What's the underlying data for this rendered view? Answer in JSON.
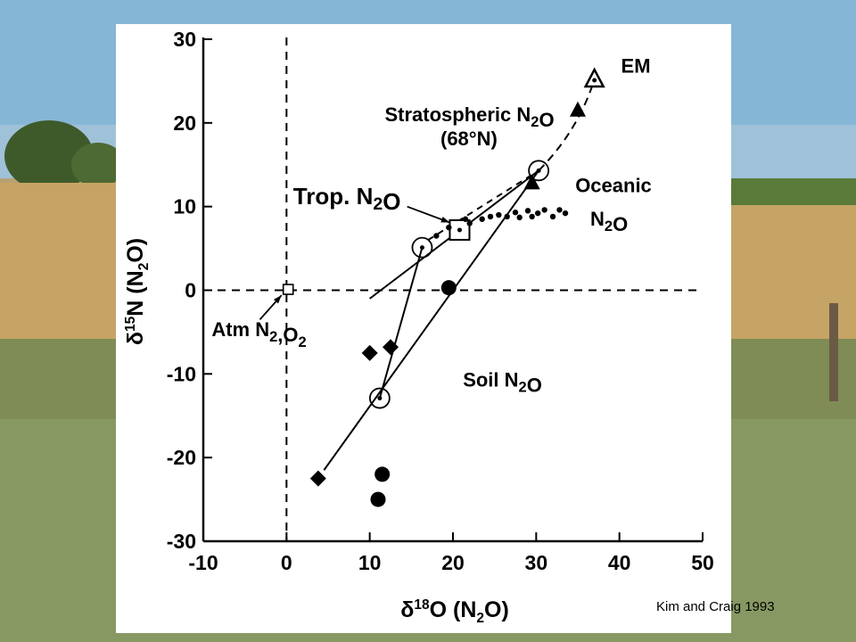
{
  "chart_data": {
    "type": "scatter",
    "title": "",
    "xlabel": "δ18O (N2O)",
    "ylabel": "δ15N (N2O)",
    "xlim": [
      -10,
      50
    ],
    "ylim": [
      -30,
      30
    ],
    "x_ticks": [
      "-10",
      "0",
      "10",
      "20",
      "30",
      "40",
      "50"
    ],
    "y_ticks": [
      "30",
      "20",
      "10",
      "0",
      "-10",
      "-20",
      "-30"
    ],
    "grid": false,
    "reference_lines": [
      {
        "axis": "x",
        "value": 0,
        "style": "dashed"
      },
      {
        "axis": "y",
        "value": 0,
        "style": "dashed"
      }
    ],
    "series": [
      {
        "marker": "filled-circle",
        "points": [
          [
            19.5,
            0.3
          ],
          [
            11.5,
            -22
          ],
          [
            11,
            -25
          ]
        ]
      },
      {
        "marker": "filled-diamond",
        "points": [
          [
            10,
            -7.5
          ],
          [
            12.5,
            -6.8
          ],
          [
            3.8,
            -22.5
          ]
        ]
      },
      {
        "marker": "filled-triangle",
        "points": [
          [
            35,
            21.5
          ],
          [
            29.5,
            12.8
          ]
        ]
      },
      {
        "marker": "open-triangle",
        "points": [
          [
            37,
            25.2
          ]
        ]
      },
      {
        "marker": "open-circle",
        "points": [
          [
            16.3,
            5.1
          ],
          [
            30.3,
            14.3
          ],
          [
            11.2,
            -12.9
          ]
        ]
      },
      {
        "marker": "open-square",
        "points": [
          [
            20.8,
            7.2
          ],
          [
            0.2,
            0.1
          ]
        ]
      },
      {
        "marker": "small-dot",
        "points": [
          [
            18,
            6.5
          ],
          [
            19.5,
            7.5
          ],
          [
            21.5,
            8.5
          ],
          [
            22,
            8
          ],
          [
            23.5,
            8.5
          ],
          [
            24.5,
            8.8
          ],
          [
            25.5,
            9
          ],
          [
            26.5,
            8.8
          ],
          [
            27.5,
            9.3
          ],
          [
            28,
            8.7
          ],
          [
            29,
            9.5
          ],
          [
            29.5,
            8.8
          ],
          [
            30.2,
            9.2
          ],
          [
            31,
            9.6
          ],
          [
            32,
            8.8
          ],
          [
            32.8,
            9.6
          ],
          [
            33.5,
            9.2
          ]
        ]
      }
    ],
    "annotations": [
      {
        "text": "EM",
        "x": 40.2,
        "y": 26
      },
      {
        "text": "Stratospheric N2O",
        "x": 11.8,
        "y": 20.2
      },
      {
        "text": "(68°N)",
        "x": 18.5,
        "y": 17.3
      },
      {
        "text": "Trop. N2O",
        "x": 0.8,
        "y": 10.3
      },
      {
        "text": "Oceanic",
        "x": 34.7,
        "y": 11.7
      },
      {
        "text": "N2O",
        "x": 36.5,
        "y": 7.7
      },
      {
        "text": "Atm N2,O2",
        "x": -9,
        "y": -5.5
      },
      {
        "text": "Soil N2O",
        "x": 21.2,
        "y": -11.5
      }
    ]
  },
  "citation": "Kim and Craig 1993"
}
